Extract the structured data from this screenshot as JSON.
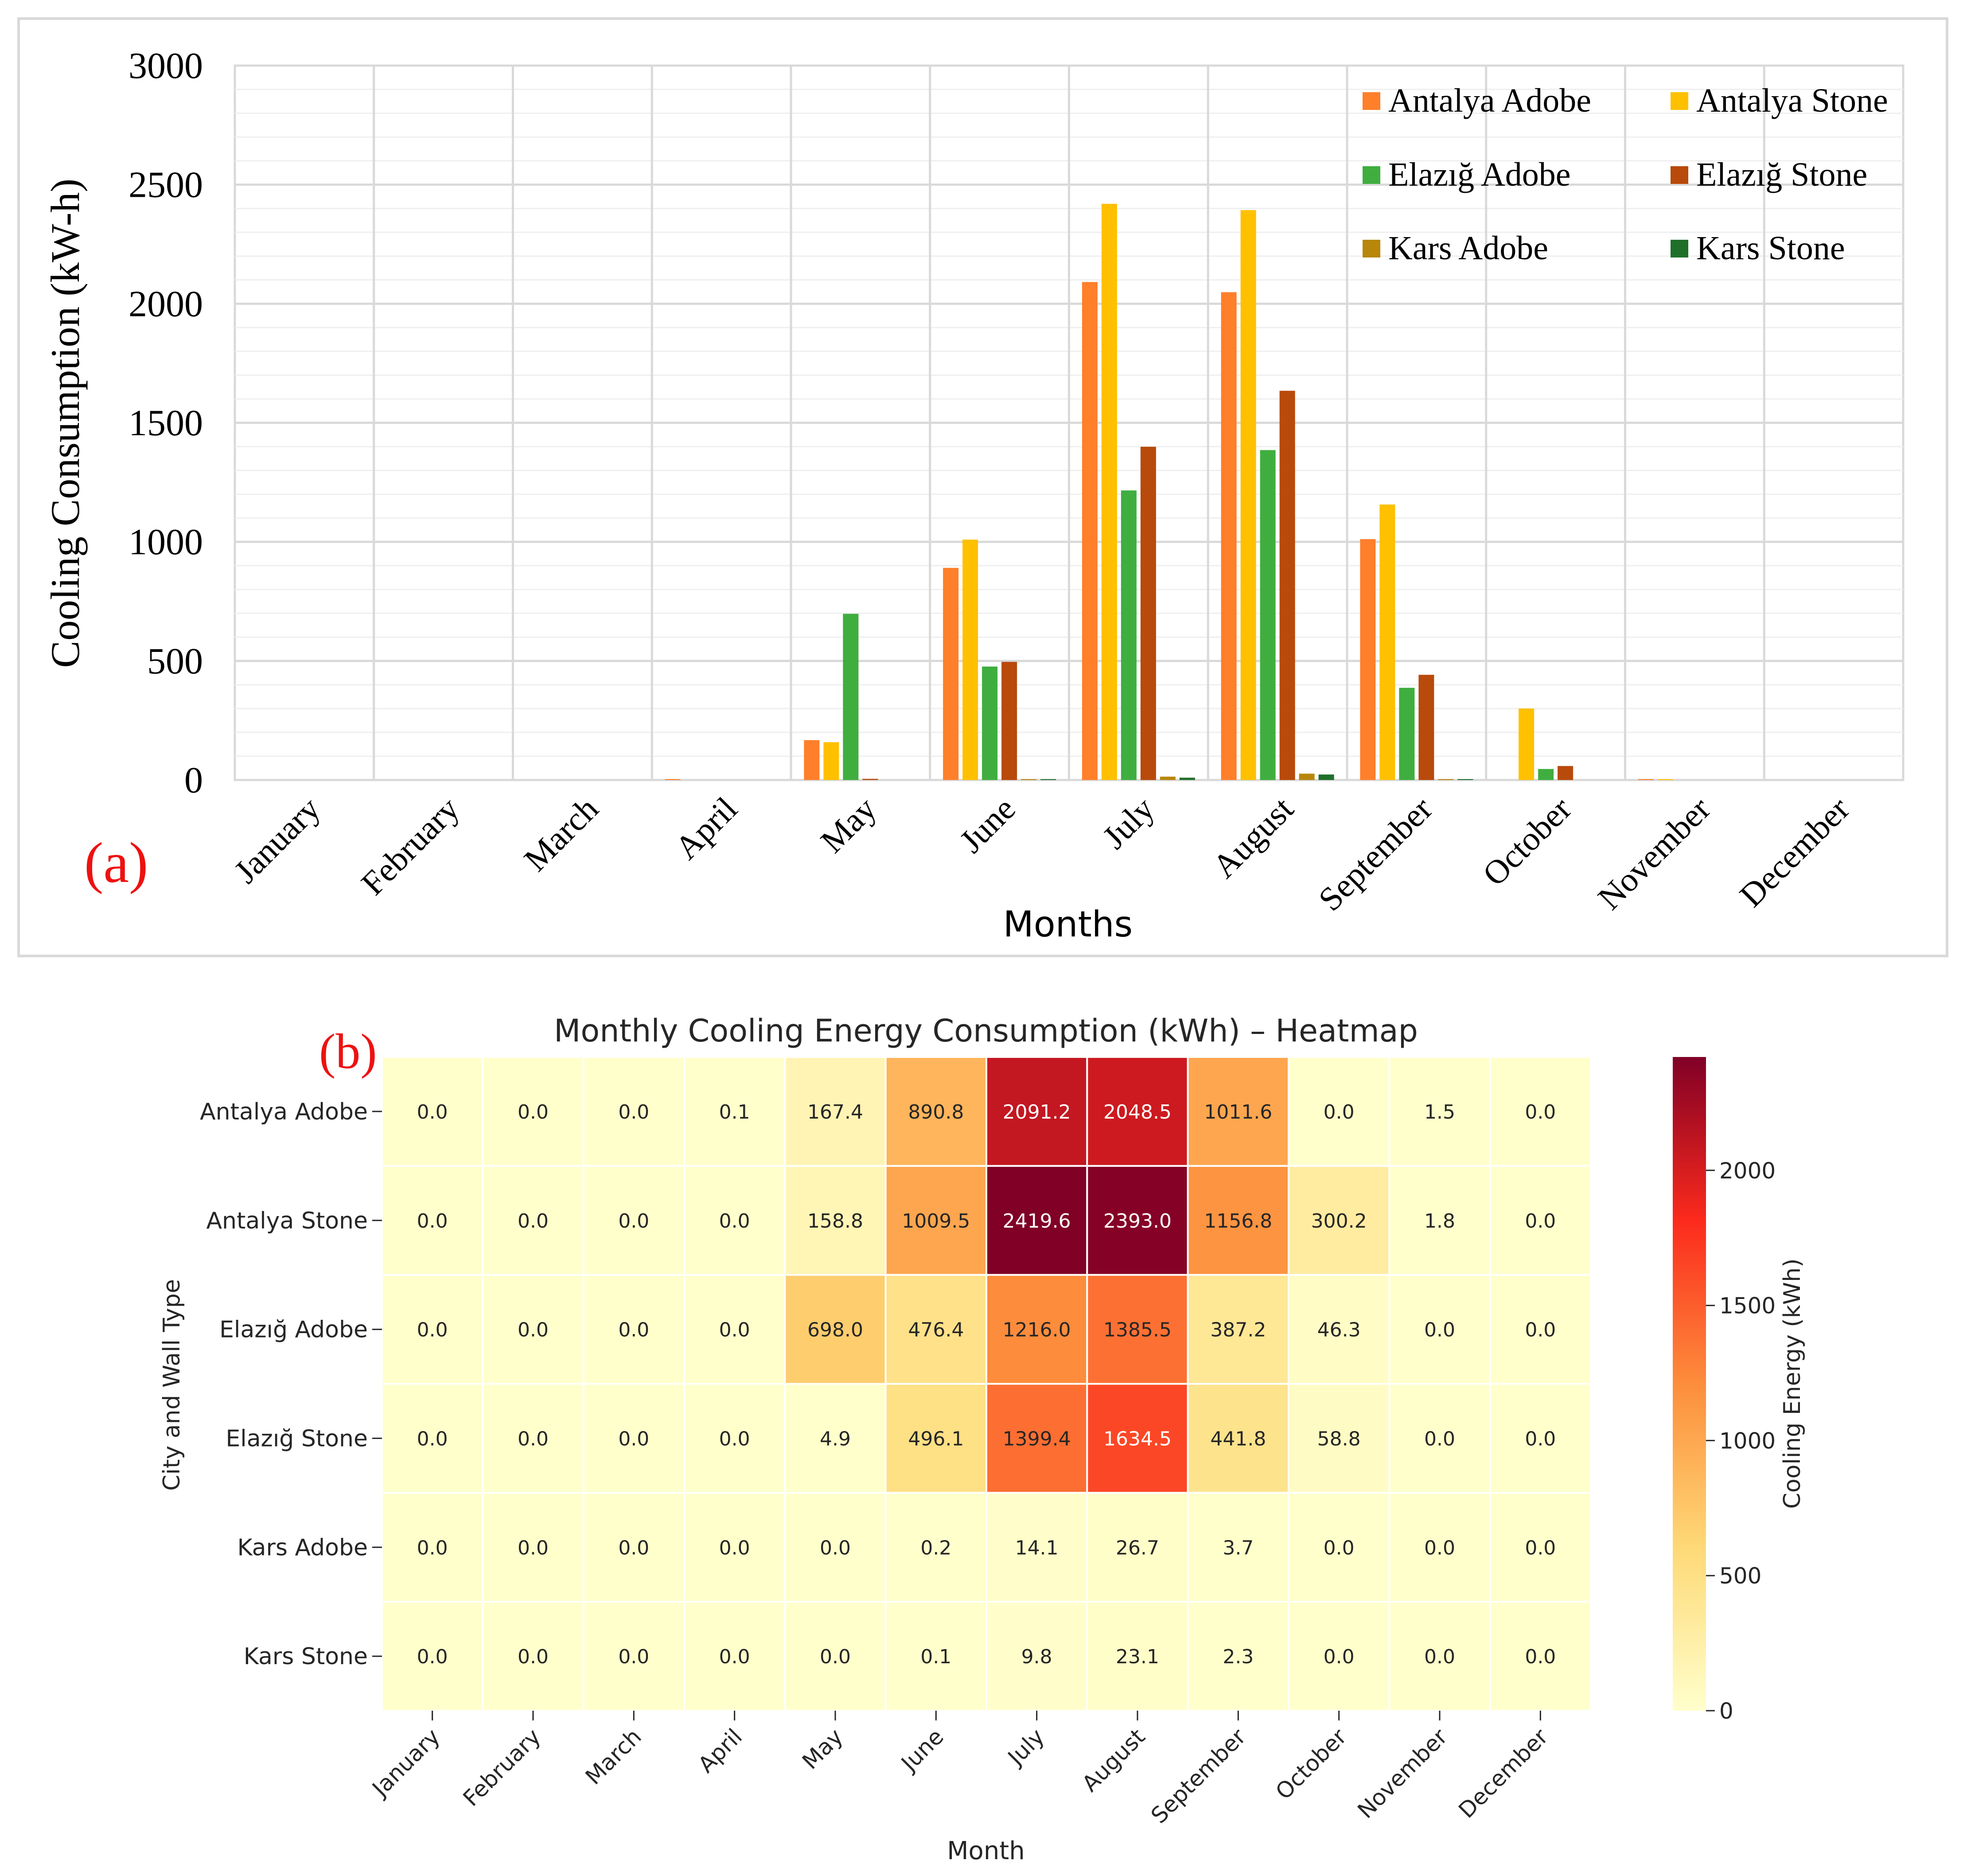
{
  "colors": {
    "antalya_adobe": "#FF7F2A",
    "antalya_stone": "#FFC000",
    "elazig_adobe": "#3FAE3F",
    "elazig_stone": "#B84A0B",
    "kars_adobe": "#B8860B",
    "kars_stone": "#1F6F2A",
    "panel_label": "#EE1111",
    "heat_low": "#FFFFCC",
    "heat_mid1": "#FED976",
    "heat_mid2": "#FD8D3C",
    "heat_mid3": "#FC2A1C",
    "heat_high": "#800026"
  },
  "chart_data": [
    {
      "type": "bar",
      "panel_label": "(a)",
      "title": "",
      "xlabel": "Months",
      "ylabel": "Cooling Consumption (kW-h)",
      "ylim": [
        0,
        3000
      ],
      "yticks": [
        0,
        500,
        1000,
        1500,
        2000,
        2500,
        3000
      ],
      "grid": true,
      "legend_position": "top-right",
      "categories": [
        "January",
        "February",
        "March",
        "April",
        "May",
        "June",
        "July",
        "August",
        "September",
        "October",
        "November",
        "December"
      ],
      "series": [
        {
          "name": "Antalya Adobe",
          "color_key": "antalya_adobe",
          "values": [
            0.0,
            0.0,
            0.0,
            0.1,
            167.4,
            890.8,
            2091.2,
            2048.5,
            1011.6,
            0.0,
            1.5,
            0.0
          ]
        },
        {
          "name": "Antalya Stone",
          "color_key": "antalya_stone",
          "values": [
            0.0,
            0.0,
            0.0,
            0.0,
            158.8,
            1009.5,
            2419.6,
            2393.0,
            1156.8,
            300.2,
            1.8,
            0.0
          ]
        },
        {
          "name": "Elazığ Adobe",
          "color_key": "elazig_adobe",
          "values": [
            0.0,
            0.0,
            0.0,
            0.0,
            698.0,
            476.4,
            1216.0,
            1385.5,
            387.2,
            46.3,
            0.0,
            0.0
          ]
        },
        {
          "name": "Elazığ Stone",
          "color_key": "elazig_stone",
          "values": [
            0.0,
            0.0,
            0.0,
            0.0,
            4.9,
            496.1,
            1399.4,
            1634.5,
            441.8,
            58.8,
            0.0,
            0.0
          ]
        },
        {
          "name": "Kars Adobe",
          "color_key": "kars_adobe",
          "values": [
            0.0,
            0.0,
            0.0,
            0.0,
            0.0,
            0.2,
            14.1,
            26.7,
            3.7,
            0.0,
            0.0,
            0.0
          ]
        },
        {
          "name": "Kars Stone",
          "color_key": "kars_stone",
          "values": [
            0.0,
            0.0,
            0.0,
            0.0,
            0.0,
            0.1,
            9.8,
            23.1,
            2.3,
            0.0,
            0.0,
            0.0
          ]
        }
      ]
    },
    {
      "type": "heatmap",
      "panel_label": "(b)",
      "title": "Monthly Cooling Energy Consumption (kWh) – Heatmap",
      "xlabel": "Month",
      "ylabel": "City and Wall Type",
      "colorbar_label": "Cooling Energy (kWh)",
      "colorbar_range": [
        0,
        2419.6
      ],
      "colorbar_ticks": [
        0,
        500,
        1000,
        1500,
        2000
      ],
      "colormap": "YlOrRd",
      "x_categories": [
        "January",
        "February",
        "March",
        "April",
        "May",
        "June",
        "July",
        "August",
        "September",
        "October",
        "November",
        "December"
      ],
      "y_categories": [
        "Antalya Adobe",
        "Antalya Stone",
        "Elazığ Adobe",
        "Elazığ Stone",
        "Kars Adobe",
        "Kars Stone"
      ],
      "values": [
        [
          0.0,
          0.0,
          0.0,
          0.1,
          167.4,
          890.8,
          2091.2,
          2048.5,
          1011.6,
          0.0,
          1.5,
          0.0
        ],
        [
          0.0,
          0.0,
          0.0,
          0.0,
          158.8,
          1009.5,
          2419.6,
          2393.0,
          1156.8,
          300.2,
          1.8,
          0.0
        ],
        [
          0.0,
          0.0,
          0.0,
          0.0,
          698.0,
          476.4,
          1216.0,
          1385.5,
          387.2,
          46.3,
          0.0,
          0.0
        ],
        [
          0.0,
          0.0,
          0.0,
          0.0,
          4.9,
          496.1,
          1399.4,
          1634.5,
          441.8,
          58.8,
          0.0,
          0.0
        ],
        [
          0.0,
          0.0,
          0.0,
          0.0,
          0.0,
          0.2,
          14.1,
          26.7,
          3.7,
          0.0,
          0.0,
          0.0
        ],
        [
          0.0,
          0.0,
          0.0,
          0.0,
          0.0,
          0.1,
          9.8,
          23.1,
          2.3,
          0.0,
          0.0,
          0.0
        ]
      ]
    }
  ]
}
